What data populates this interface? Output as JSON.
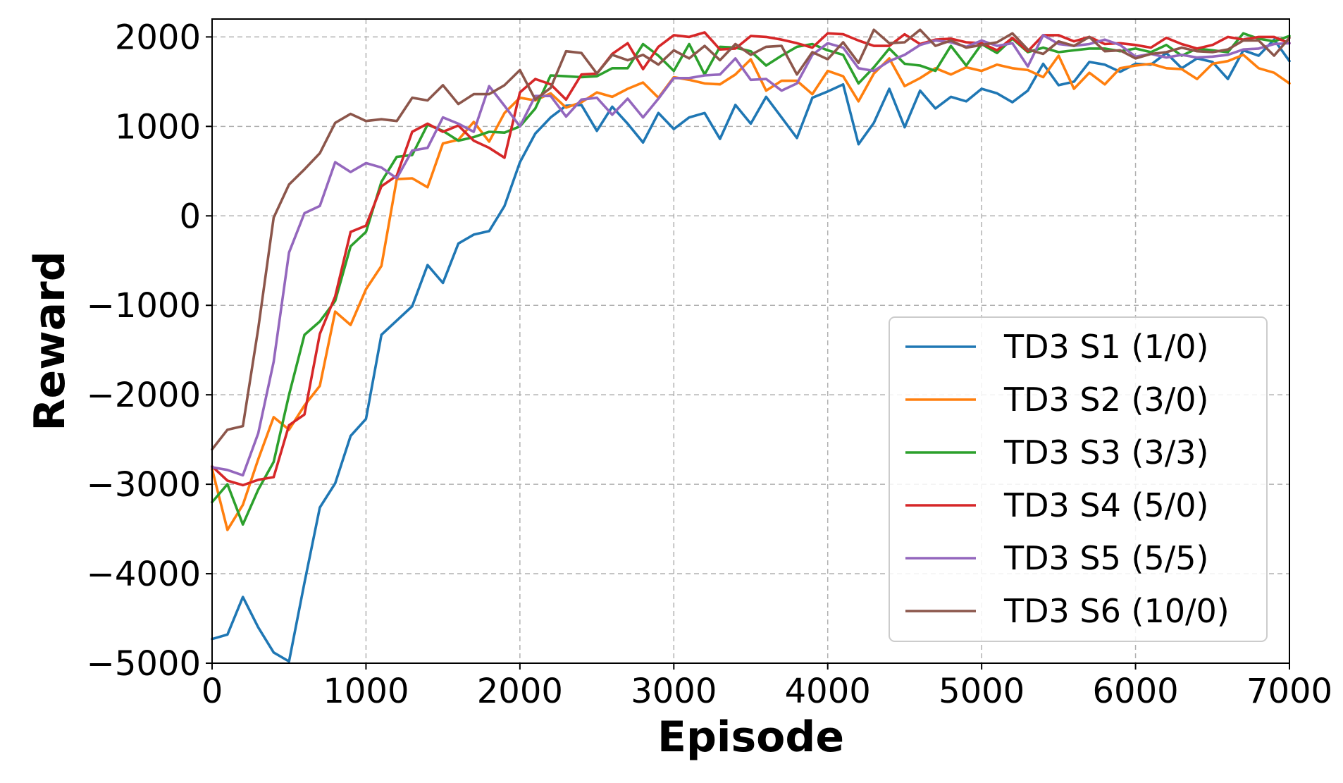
{
  "chart_data": {
    "type": "line",
    "title": "",
    "xlabel": "Episode",
    "ylabel": "Reward",
    "xlim": [
      0,
      7000
    ],
    "ylim": [
      -5000,
      2200
    ],
    "xticks": [
      0,
      1000,
      2000,
      3000,
      4000,
      5000,
      6000,
      7000
    ],
    "yticks": [
      -5000,
      -4000,
      -3000,
      -2000,
      -1000,
      0,
      1000,
      2000
    ],
    "xtick_labels": [
      "0",
      "1000",
      "2000",
      "3000",
      "4000",
      "5000",
      "6000",
      "7000"
    ],
    "ytick_labels": [
      "−5000",
      "−4000",
      "−3000",
      "−2000",
      "−1000",
      "0",
      "1000",
      "2000"
    ],
    "grid": true,
    "legend_position": "lower-right",
    "x": [
      0,
      100,
      200,
      300,
      400,
      500,
      600,
      700,
      800,
      900,
      1000,
      1100,
      1200,
      1300,
      1400,
      1500,
      1600,
      1700,
      1800,
      1900,
      2000,
      2100,
      2200,
      2300,
      2400,
      2500,
      2600,
      2700,
      2800,
      2900,
      3000,
      3100,
      3200,
      3300,
      3400,
      3500,
      3600,
      3700,
      3800,
      3900,
      4000,
      4100,
      4200,
      4300,
      4400,
      4500,
      4600,
      4700,
      4800,
      4900,
      5000,
      5100,
      5200,
      5300,
      5400,
      5500,
      5600,
      5700,
      5800,
      5900,
      6000,
      6100,
      6200,
      6300,
      6400,
      6500,
      6600,
      6700,
      6800,
      6900,
      7000
    ],
    "series": [
      {
        "name": "TD3 S1 (1/0)",
        "color": "#1f77b4",
        "values": [
          -4730,
          -4680,
          -4260,
          -4600,
          -4880,
          -4980,
          -4100,
          -3260,
          -2990,
          -2460,
          -2270,
          -1330,
          -1170,
          -1010,
          -550,
          -750,
          -310,
          -210,
          -170,
          110,
          600,
          920,
          1100,
          1230,
          1240,
          950,
          1220,
          1030,
          820,
          1150,
          970,
          1100,
          1150,
          860,
          1240,
          1030,
          1330,
          1100,
          870,
          1320,
          1390,
          1470,
          800,
          1040,
          1420,
          990,
          1400,
          1200,
          1330,
          1280,
          1420,
          1370,
          1270,
          1400,
          1700,
          1460,
          1500,
          1720,
          1690,
          1610,
          1700,
          1690,
          1820,
          1650,
          1760,
          1720,
          1530,
          1850,
          1790,
          1970,
          1730
        ]
      },
      {
        "name": "TD3 S2 (3/0)",
        "color": "#ff7f0e",
        "values": [
          -2830,
          -3510,
          -3230,
          -2720,
          -2250,
          -2390,
          -2120,
          -1900,
          -1070,
          -1220,
          -820,
          -560,
          410,
          420,
          320,
          810,
          850,
          1050,
          830,
          1150,
          1320,
          1290,
          1370,
          1210,
          1270,
          1380,
          1330,
          1420,
          1490,
          1320,
          1550,
          1520,
          1480,
          1470,
          1580,
          1750,
          1400,
          1510,
          1510,
          1360,
          1620,
          1560,
          1280,
          1590,
          1760,
          1450,
          1540,
          1650,
          1580,
          1660,
          1620,
          1690,
          1650,
          1630,
          1550,
          1790,
          1420,
          1600,
          1470,
          1650,
          1680,
          1700,
          1650,
          1640,
          1530,
          1700,
          1730,
          1800,
          1650,
          1600,
          1480
        ]
      },
      {
        "name": "TD3 S3 (3/3)",
        "color": "#2ca02c",
        "values": [
          -3200,
          -3000,
          -3450,
          -3060,
          -2750,
          -2000,
          -1330,
          -1180,
          -950,
          -340,
          -180,
          380,
          660,
          680,
          1020,
          950,
          840,
          880,
          940,
          930,
          1000,
          1200,
          1570,
          1560,
          1550,
          1560,
          1650,
          1650,
          1920,
          1790,
          1620,
          1920,
          1580,
          1890,
          1880,
          1840,
          1680,
          1790,
          1890,
          1920,
          1850,
          1800,
          1480,
          1660,
          1870,
          1700,
          1680,
          1620,
          1900,
          1680,
          1920,
          1820,
          1980,
          1830,
          1880,
          1830,
          1850,
          1870,
          1870,
          1840,
          1870,
          1830,
          1910,
          1790,
          1870,
          1850,
          1830,
          2040,
          1980,
          1950,
          2010
        ]
      },
      {
        "name": "TD3 S4 (5/0)",
        "color": "#d62728",
        "values": [
          -2800,
          -2960,
          -3010,
          -2950,
          -2920,
          -2340,
          -2220,
          -1320,
          -900,
          -180,
          -110,
          330,
          450,
          940,
          1030,
          940,
          1010,
          840,
          760,
          650,
          1380,
          1530,
          1470,
          1300,
          1580,
          1590,
          1810,
          1930,
          1640,
          1890,
          2020,
          2000,
          2050,
          1860,
          1870,
          2010,
          2000,
          1970,
          1930,
          1880,
          2040,
          2030,
          1960,
          1900,
          1900,
          2030,
          1920,
          1970,
          1980,
          1940,
          1930,
          1850,
          1990,
          1840,
          2020,
          2020,
          1950,
          2000,
          1920,
          1930,
          1910,
          1880,
          1990,
          1920,
          1870,
          1910,
          2000,
          1970,
          2000,
          2000,
          1930
        ]
      },
      {
        "name": "TD3 S5 (5/5)",
        "color": "#9467bd",
        "values": [
          -2810,
          -2840,
          -2900,
          -2430,
          -1630,
          -410,
          30,
          110,
          600,
          490,
          590,
          540,
          420,
          730,
          760,
          1100,
          1030,
          940,
          1450,
          1230,
          1000,
          1340,
          1340,
          1110,
          1300,
          1320,
          1130,
          1310,
          1100,
          1310,
          1540,
          1540,
          1570,
          1580,
          1760,
          1520,
          1530,
          1400,
          1480,
          1800,
          1930,
          1880,
          1650,
          1620,
          1730,
          1800,
          1910,
          1960,
          1940,
          1890,
          1960,
          1900,
          1930,
          1670,
          2020,
          1920,
          1900,
          1920,
          1970,
          1910,
          1780,
          1810,
          1770,
          1800,
          1770,
          1780,
          1800,
          1860,
          1870,
          1920,
          1930
        ]
      },
      {
        "name": "TD3 S6 (10/0)",
        "color": "#8c564b",
        "values": [
          -2610,
          -2390,
          -2350,
          -1260,
          -20,
          350,
          520,
          700,
          1040,
          1140,
          1060,
          1080,
          1060,
          1320,
          1290,
          1460,
          1250,
          1360,
          1360,
          1460,
          1630,
          1300,
          1430,
          1840,
          1820,
          1590,
          1800,
          1740,
          1800,
          1690,
          1850,
          1760,
          1900,
          1740,
          1920,
          1800,
          1890,
          1900,
          1580,
          1830,
          1750,
          1940,
          1710,
          2080,
          1930,
          1940,
          2080,
          1900,
          1960,
          1880,
          1910,
          1940,
          2040,
          1860,
          1810,
          1950,
          1900,
          2000,
          1840,
          1850,
          1760,
          1810,
          1830,
          1880,
          1840,
          1830,
          1860,
          1960,
          1960,
          1790,
          1990
        ]
      }
    ]
  }
}
